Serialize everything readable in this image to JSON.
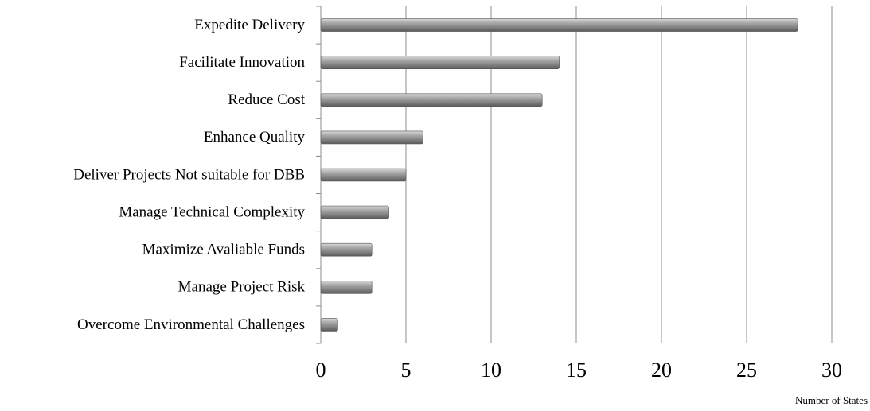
{
  "chart_data": {
    "type": "bar",
    "orientation": "horizontal",
    "categories": [
      "Expedite Delivery",
      "Facilitate Innovation",
      "Reduce Cost",
      "Enhance Quality",
      "Deliver Projects Not suitable for DBB",
      "Manage Technical Complexity",
      "Maximize Avaliable Funds",
      "Manage Project Risk",
      "Overcome Environmental Challenges"
    ],
    "values": [
      28,
      14,
      13,
      6,
      5,
      4,
      3,
      3,
      1
    ],
    "color": "#8c8c8c",
    "xlabel": "Number of States",
    "xlim": [
      0,
      30
    ],
    "xticks": [
      0,
      5,
      10,
      15,
      20,
      25,
      30
    ],
    "grid": true
  }
}
